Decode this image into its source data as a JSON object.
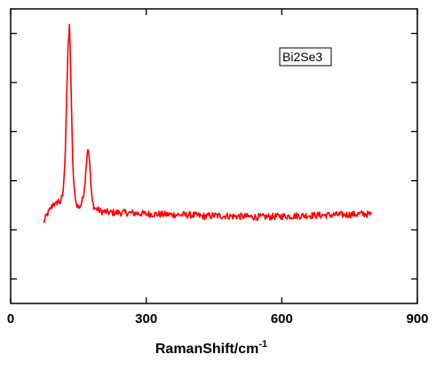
{
  "chart_data": {
    "type": "line",
    "title": "",
    "xlabel": "RamanShift/cm",
    "xlabel_superscript": "-1",
    "ylabel": "",
    "xlim": [
      0,
      900
    ],
    "ylim": [
      0,
      12
    ],
    "x_ticks": [
      {
        "value": 0,
        "label": "0"
      },
      {
        "value": 300,
        "label": "300"
      },
      {
        "value": 600,
        "label": "600"
      },
      {
        "value": 900,
        "label": "900"
      }
    ],
    "y_tick_values": [
      1,
      3,
      5,
      7,
      9,
      11
    ],
    "y_tick_labels_shown": false,
    "grid": false,
    "legend_placement": "top-right",
    "series": [
      {
        "name": "Bi2Se3",
        "color": "#ff0000",
        "x": [
          73,
          80,
          90,
          95,
          100,
          105,
          110,
          115,
          118,
          121,
          124,
          127,
          130,
          132,
          134,
          137,
          140,
          145,
          150,
          155,
          160,
          165,
          168,
          171,
          174,
          177,
          180,
          185,
          190,
          195,
          200,
          220,
          250,
          300,
          350,
          400,
          430,
          450,
          500,
          550,
          600,
          650,
          700,
          750,
          780,
          800
        ],
        "y": [
          3.3,
          3.6,
          3.9,
          4.1,
          4.0,
          4.2,
          4.1,
          4.4,
          5.0,
          6.3,
          8.5,
          10.4,
          11.3,
          10.4,
          8.4,
          6.0,
          4.7,
          4.1,
          3.9,
          4.0,
          4.3,
          5.0,
          5.9,
          6.4,
          6.0,
          5.0,
          4.2,
          3.9,
          3.85,
          3.8,
          3.75,
          3.7,
          3.7,
          3.65,
          3.62,
          3.6,
          3.55,
          3.58,
          3.55,
          3.52,
          3.55,
          3.58,
          3.6,
          3.62,
          3.65,
          3.62
        ]
      }
    ]
  }
}
